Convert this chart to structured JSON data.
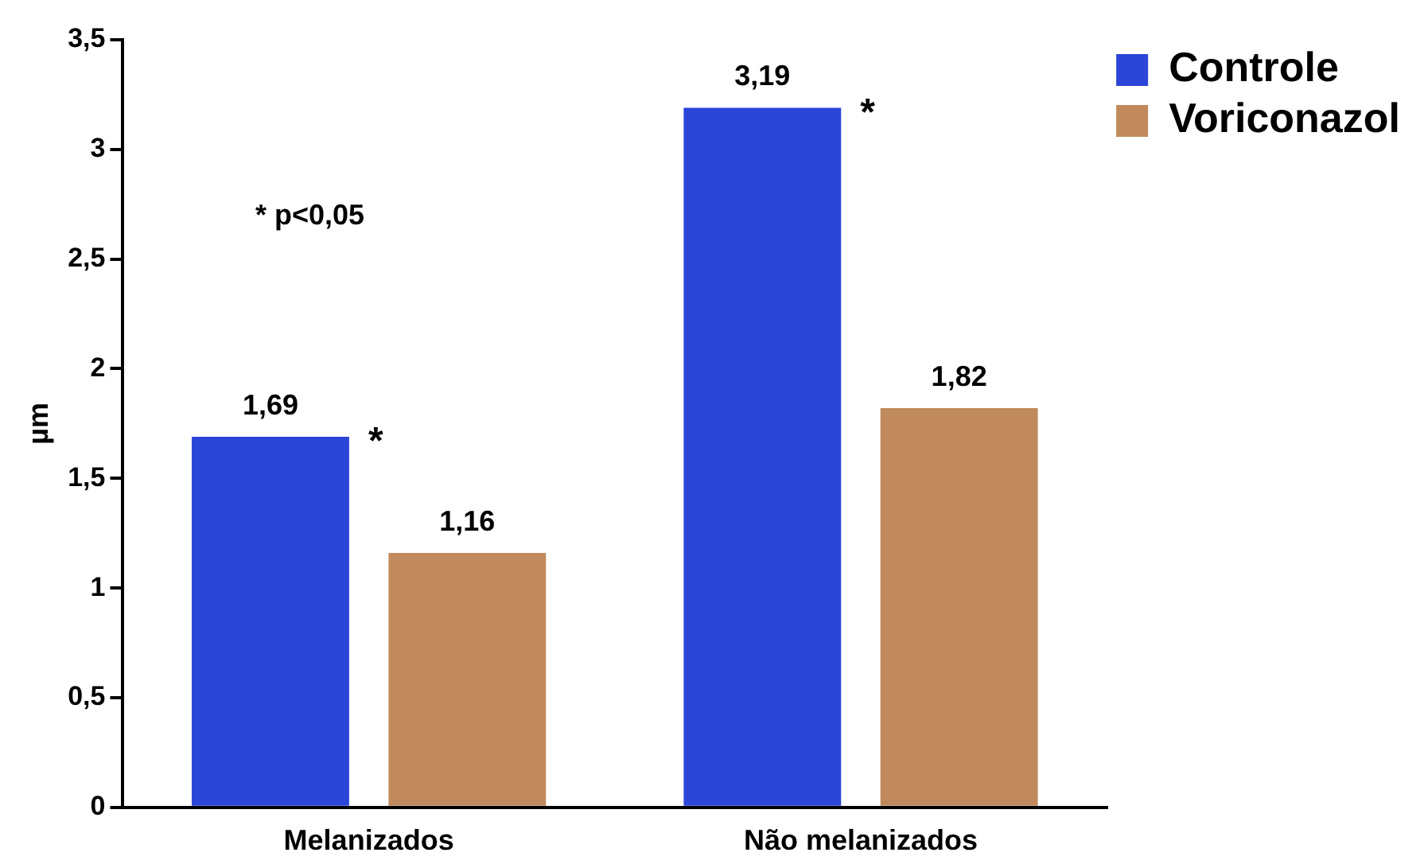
{
  "chart_data": {
    "type": "bar",
    "ylabel": "µm",
    "categories": [
      "Melanizados",
      "Não melanizados"
    ],
    "series": [
      {
        "name": "Controle",
        "color": "#2b45d8",
        "values": [
          1.69,
          3.19
        ],
        "value_labels": [
          "1,69",
          "3,19"
        ]
      },
      {
        "name": "Voriconazol",
        "color": "#c08a5c",
        "values": [
          1.16,
          1.82
        ],
        "value_labels": [
          "1,16",
          "1,82"
        ]
      }
    ],
    "ylim": [
      0,
      3.5
    ],
    "yticks": [
      0,
      {
        "value": 0.5,
        "label": "0,5"
      },
      1,
      {
        "value": 1.5,
        "label": "1,5"
      },
      2,
      {
        "value": 2.5,
        "label": "2,5"
      },
      3,
      {
        "value": 3.5,
        "label": "3,5"
      }
    ],
    "grid": false,
    "legend": "top right",
    "annotations": [
      "* p<0,05",
      "*",
      "*"
    ]
  }
}
